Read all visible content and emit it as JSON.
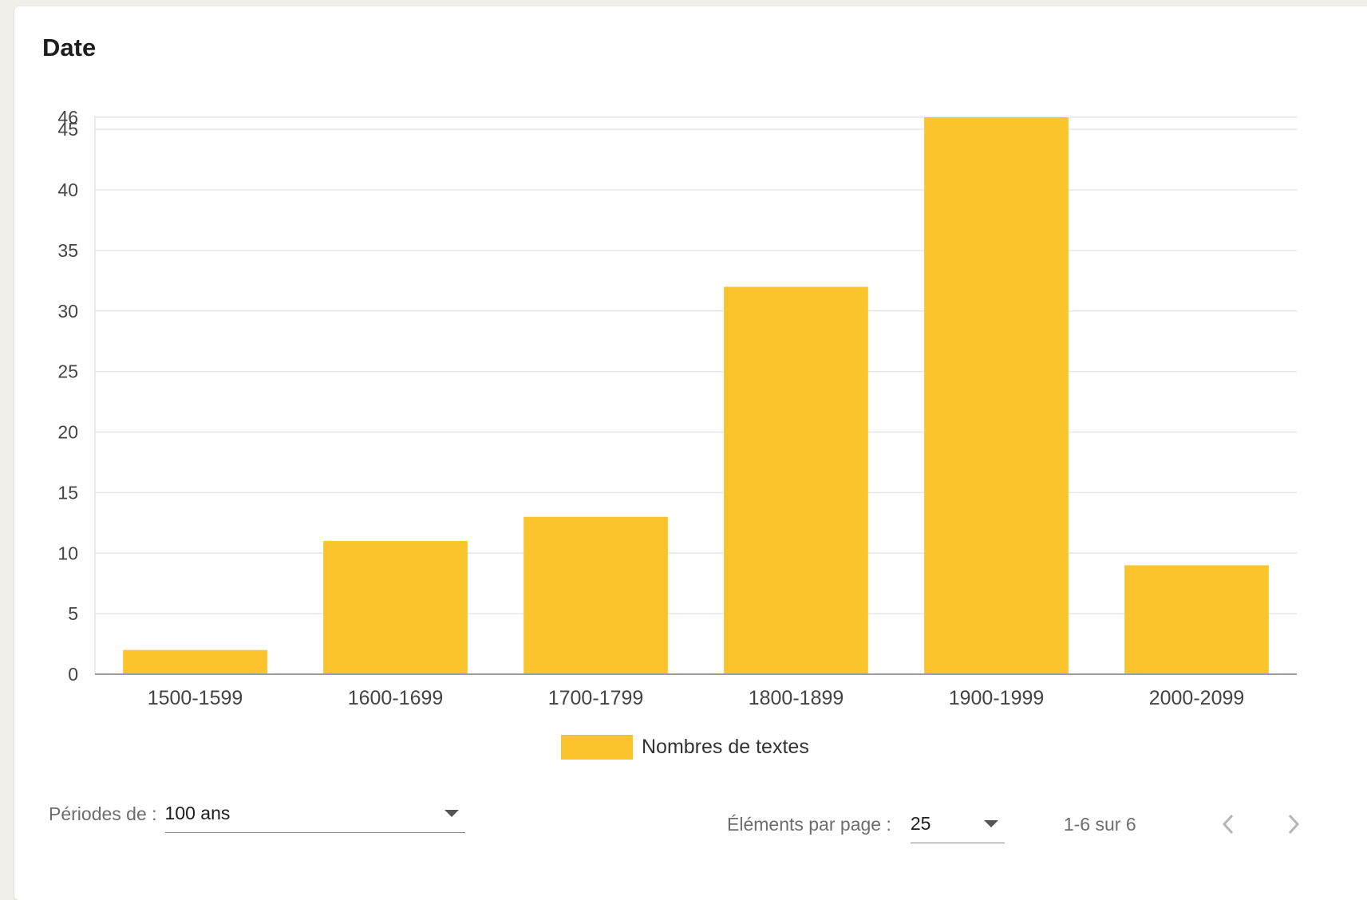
{
  "card": {
    "title": "Date"
  },
  "chart_data": {
    "type": "bar",
    "title": "Date",
    "categories": [
      "1500-1599",
      "1600-1699",
      "1700-1799",
      "1800-1899",
      "1900-1999",
      "2000-2099"
    ],
    "series": [
      {
        "name": "Nombres de textes",
        "values": [
          2,
          11,
          13,
          32,
          46,
          9
        ],
        "color": "#fcc42c"
      }
    ],
    "ylim": [
      0,
      46
    ],
    "yticks": [
      0,
      5,
      10,
      15,
      20,
      25,
      30,
      35,
      40,
      45,
      46
    ],
    "grid": true,
    "legend": "bottom"
  },
  "controls": {
    "period_label": "Périodes de :",
    "period_value": "100 ans",
    "per_page_label": "Éléments par page :",
    "per_page_value": "25",
    "range_text": "1-6 sur 6"
  },
  "icons": {
    "period_dropdown": "caret-down-icon",
    "per_page_dropdown": "caret-down-icon",
    "prev": "chevron-left-icon",
    "next": "chevron-right-icon"
  },
  "colors": {
    "bar": "#fcc42c",
    "grid": "#e6e6e6",
    "axis": "#9e9e9e"
  }
}
